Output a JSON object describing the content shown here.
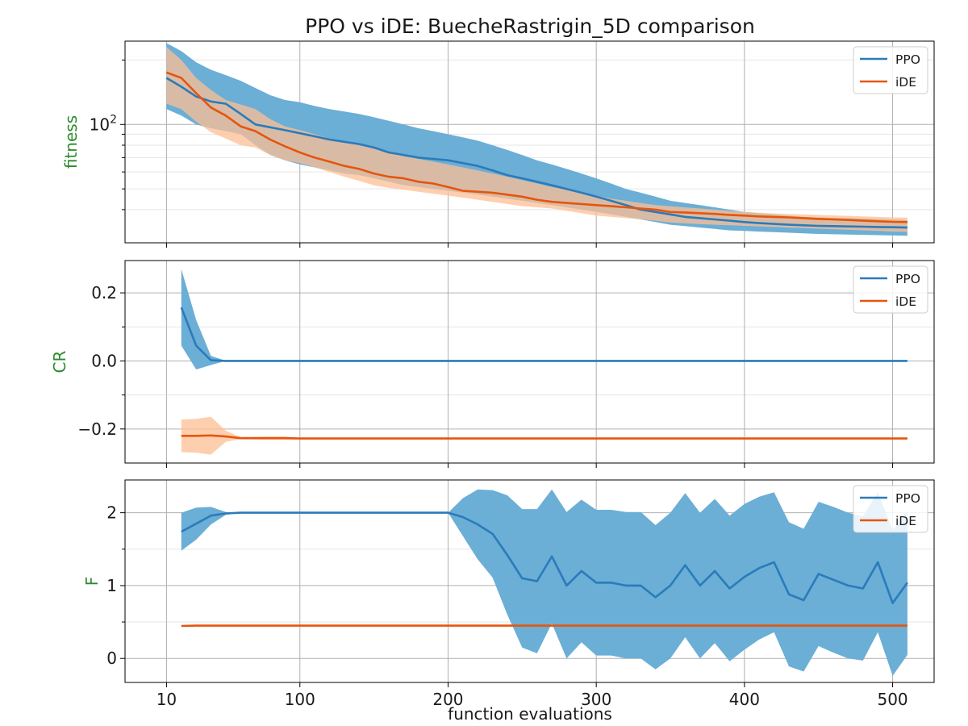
{
  "figure": {
    "title": "PPO vs iDE: BuecheRastrigin_5D comparison",
    "xlabel": "function evaluations"
  },
  "colors": {
    "ppo_line": "#2b7bba",
    "ppo_band": "#6baed6",
    "ide_line": "#e6550d",
    "ide_band": "#fdbf94"
  },
  "chart_data": [
    {
      "type": "line",
      "panel": "fitness",
      "ylabel": "fitness",
      "yscale": "log",
      "ylim": [
        28,
        245
      ],
      "yticks": [
        {
          "value": 100,
          "label": "10^2"
        }
      ],
      "ygrid_minor": [
        40,
        50,
        60,
        70,
        80,
        90,
        200
      ],
      "xlim": [
        -18,
        528
      ],
      "xticks": [
        10,
        100,
        200,
        300,
        400,
        500
      ],
      "grid": true,
      "legend": "top-right",
      "series": [
        {
          "name": "PPO",
          "x": [
            10,
            20,
            30,
            40,
            50,
            60,
            70,
            80,
            90,
            100,
            110,
            120,
            130,
            140,
            150,
            160,
            170,
            180,
            190,
            200,
            210,
            220,
            230,
            240,
            250,
            260,
            270,
            280,
            290,
            300,
            310,
            320,
            330,
            340,
            350,
            360,
            370,
            380,
            390,
            400,
            410,
            420,
            430,
            440,
            450,
            460,
            470,
            480,
            490,
            500,
            510
          ],
          "mean": [
            165,
            150,
            135,
            128,
            125,
            112,
            100,
            97,
            94,
            91,
            88,
            85,
            83,
            81,
            78,
            74,
            72,
            70,
            69,
            68,
            66,
            64,
            61,
            58,
            56,
            54,
            52,
            50,
            48,
            46,
            44,
            42,
            40,
            39,
            38,
            37,
            36.5,
            36,
            35.5,
            35,
            34.6,
            34.3,
            34,
            33.8,
            33.6,
            33.5,
            33.4,
            33.3,
            33.2,
            33.1,
            33
          ],
          "upper": [
            240,
            220,
            195,
            180,
            170,
            160,
            148,
            137,
            130,
            127,
            122,
            118,
            115,
            112,
            108,
            104,
            100,
            96,
            93,
            90,
            87,
            84,
            80,
            76,
            72,
            68,
            65,
            62,
            59,
            56,
            53,
            50,
            48,
            46,
            44,
            43,
            42,
            41,
            40,
            39,
            38.5,
            38,
            37.5,
            37,
            36.8,
            36.6,
            36.5,
            36.4,
            36.2,
            36,
            35.8
          ],
          "lower": [
            118,
            110,
            100,
            96,
            93,
            90,
            80,
            72,
            68,
            65,
            63,
            61,
            59,
            58,
            56,
            54,
            52,
            51,
            50,
            49,
            48,
            47,
            46,
            45,
            44,
            43,
            42,
            41,
            40,
            39,
            38,
            37,
            36,
            35,
            34,
            33.5,
            33,
            32.5,
            32,
            31.8,
            31.6,
            31.4,
            31.2,
            31,
            30.8,
            30.7,
            30.6,
            30.5,
            30.4,
            30.3,
            30.2
          ]
        },
        {
          "name": "iDE",
          "x": [
            10,
            20,
            30,
            40,
            50,
            60,
            70,
            80,
            90,
            100,
            110,
            120,
            130,
            140,
            150,
            160,
            170,
            180,
            190,
            200,
            210,
            220,
            230,
            240,
            250,
            260,
            270,
            280,
            290,
            300,
            310,
            320,
            330,
            340,
            350,
            360,
            370,
            380,
            390,
            400,
            410,
            420,
            430,
            440,
            450,
            460,
            470,
            480,
            490,
            500,
            510
          ],
          "mean": [
            175,
            165,
            140,
            120,
            110,
            98,
            93,
            85,
            79,
            74,
            70,
            67,
            64,
            62,
            59,
            57,
            56,
            54,
            53,
            51,
            49,
            48.5,
            48,
            47,
            46,
            44.5,
            43.5,
            43,
            42.5,
            42,
            41.5,
            41,
            40.5,
            40,
            39,
            38.8,
            38.5,
            38.2,
            37.8,
            37.5,
            37.2,
            37,
            36.8,
            36.5,
            36.2,
            36,
            35.8,
            35.5,
            35.3,
            35.1,
            35
          ],
          "upper": [
            230,
            200,
            165,
            145,
            130,
            124,
            118,
            106,
            98,
            94,
            90,
            86,
            83,
            80,
            77,
            74,
            71,
            69,
            67,
            65,
            63,
            61,
            59,
            57,
            55,
            53,
            51,
            49.5,
            48,
            46.5,
            45,
            44,
            43,
            42,
            41.5,
            41,
            40.5,
            40,
            39.5,
            39,
            38.7,
            38.4,
            38.2,
            38,
            37.8,
            37.6,
            37.4,
            37.2,
            37,
            36.8,
            36.7
          ],
          "lower": [
            125,
            118,
            103,
            92,
            86,
            80,
            78,
            72,
            68,
            66,
            63,
            60,
            57,
            54.5,
            52,
            50.5,
            49.5,
            48.5,
            47.5,
            46.5,
            45.5,
            44.5,
            43.5,
            42.5,
            41.5,
            41,
            40.5,
            39.5,
            38.5,
            37.5,
            37,
            36.5,
            36,
            35.5,
            34.8,
            34.5,
            34.2,
            34,
            33.8,
            33.6,
            33.4,
            33.2,
            33,
            32.8,
            32.6,
            32.4,
            32.2,
            32,
            31.8,
            31.6,
            31.5
          ]
        }
      ]
    },
    {
      "type": "line",
      "panel": "CR",
      "ylabel": "CR",
      "ylim": [
        -0.3,
        0.295
      ],
      "yticks": [
        {
          "value": 0.2,
          "label": "0.2"
        },
        {
          "value": 0,
          "label": "0.0"
        },
        {
          "value": -0.2,
          "label": "−0.2"
        }
      ],
      "ygrid_minor": [
        0.1,
        -0.1
      ],
      "xlim": [
        -18,
        528
      ],
      "xticks": [
        10,
        100,
        200,
        300,
        400,
        500
      ],
      "grid": true,
      "legend": "top-right",
      "series": [
        {
          "name": "PPO",
          "x": [
            20,
            30,
            40,
            50,
            60,
            510
          ],
          "mean": [
            0.157,
            0.045,
            0.002,
            0,
            0,
            0
          ],
          "upper": [
            0.27,
            0.12,
            0.015,
            0,
            0,
            0
          ],
          "lower": [
            0.045,
            -0.025,
            -0.012,
            0,
            0,
            0
          ]
        },
        {
          "name": "iDE",
          "x": [
            20,
            30,
            40,
            50,
            60,
            70,
            80,
            90,
            100,
            120,
            510
          ],
          "mean": [
            -0.22,
            -0.22,
            -0.219,
            -0.222,
            -0.227,
            -0.227,
            -0.227,
            -0.227,
            -0.228,
            -0.228,
            -0.228
          ],
          "upper": [
            -0.172,
            -0.17,
            -0.164,
            -0.205,
            -0.224,
            -0.223,
            -0.222,
            -0.222,
            -0.226,
            -0.227,
            -0.227
          ],
          "lower": [
            -0.268,
            -0.27,
            -0.275,
            -0.238,
            -0.23,
            -0.231,
            -0.232,
            -0.232,
            -0.23,
            -0.229,
            -0.229
          ]
        }
      ]
    },
    {
      "type": "line",
      "panel": "F",
      "ylabel": "F",
      "ylim": [
        -0.33,
        2.45
      ],
      "yticks": [
        {
          "value": 2,
          "label": "2"
        },
        {
          "value": 1,
          "label": "1"
        },
        {
          "value": 0,
          "label": "0"
        }
      ],
      "ygrid_minor": [
        1.5,
        0.5
      ],
      "xlim": [
        -18,
        528
      ],
      "xticks": [
        10,
        100,
        200,
        300,
        400,
        500
      ],
      "grid": true,
      "legend": "top-right",
      "series": [
        {
          "name": "PPO",
          "x": [
            20,
            30,
            40,
            50,
            60,
            70,
            80,
            90,
            100,
            110,
            120,
            130,
            140,
            150,
            160,
            170,
            180,
            190,
            200,
            210,
            220,
            230,
            240,
            250,
            260,
            270,
            280,
            290,
            300,
            310,
            320,
            330,
            340,
            350,
            360,
            370,
            380,
            390,
            400,
            410,
            420,
            430,
            440,
            450,
            460,
            470,
            480,
            490,
            500,
            510
          ],
          "mean": [
            1.74,
            1.85,
            1.96,
            1.99,
            2,
            2,
            2,
            2,
            2,
            2,
            2,
            2,
            2,
            2,
            2,
            2,
            2,
            2,
            2,
            1.94,
            1.84,
            1.71,
            1.42,
            1.1,
            1.06,
            1.4,
            1,
            1.2,
            1.04,
            1.04,
            1,
            1,
            0.84,
            1,
            1.28,
            1,
            1.2,
            0.96,
            1.12,
            1.24,
            1.32,
            0.88,
            0.8,
            1.16,
            1.08,
            1,
            0.96,
            1.32,
            0.76,
            1.04
          ],
          "upper": [
            2,
            2.07,
            2.08,
            2.01,
            2,
            2,
            2,
            2,
            2,
            2,
            2,
            2,
            2,
            2,
            2,
            2,
            2,
            2,
            2,
            2.2,
            2.32,
            2.31,
            2.24,
            2.05,
            2.05,
            2.32,
            2.01,
            2.18,
            2.04,
            2.04,
            2.01,
            2.01,
            1.83,
            2,
            2.27,
            2,
            2.19,
            1.96,
            2.12,
            2.22,
            2.28,
            1.87,
            1.78,
            2.15,
            2.08,
            2,
            1.95,
            2.28,
            1.76,
            2.03
          ],
          "lower": [
            1.48,
            1.63,
            1.84,
            1.97,
            2,
            2,
            2,
            2,
            2,
            2,
            2,
            2,
            2,
            2,
            2,
            2,
            2,
            2,
            2,
            1.68,
            1.36,
            1.11,
            0.6,
            0.15,
            0.07,
            0.48,
            0,
            0.22,
            0.04,
            0.04,
            0,
            0,
            -0.15,
            0,
            0.29,
            0,
            0.21,
            -0.04,
            0.12,
            0.26,
            0.36,
            -0.11,
            -0.18,
            0.17,
            0.08,
            0,
            -0.03,
            0.36,
            -0.24,
            0.05
          ]
        },
        {
          "name": "iDE",
          "x": [
            20,
            30,
            510
          ],
          "mean": [
            0.445,
            0.45,
            0.45
          ],
          "upper": [
            0.455,
            0.455,
            0.455
          ],
          "lower": [
            0.44,
            0.445,
            0.445
          ]
        }
      ]
    }
  ]
}
